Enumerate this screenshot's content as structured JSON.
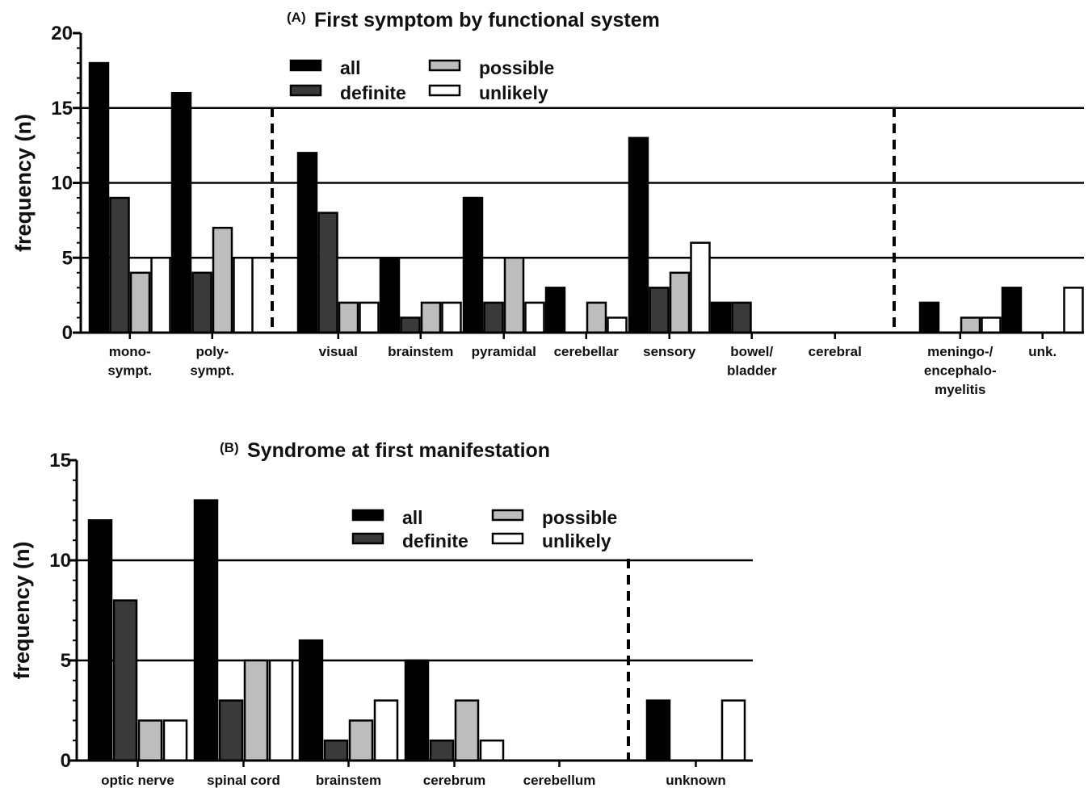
{
  "colors": {
    "all": "#000000",
    "definite": "#3a3a3a",
    "possible": "#bdbdbd",
    "unlikely": "#ffffff"
  },
  "chart_data": [
    {
      "type": "bar",
      "panel_label": "(A)",
      "title": "First symptom by functional system",
      "ylabel": "frequency (n)",
      "ylim": [
        0,
        20
      ],
      "yticks": [
        "0",
        "5",
        "10",
        "15",
        "20"
      ],
      "gridlines": [
        5,
        10,
        15
      ],
      "legend_position": "top-center",
      "categories": [
        [
          "mono-",
          "sympt."
        ],
        [
          "poly-",
          "sympt."
        ],
        [
          "visual"
        ],
        [
          "brainstem"
        ],
        [
          "pyramidal"
        ],
        [
          "cerebellar"
        ],
        [
          "sensory"
        ],
        [
          "bowel/",
          "bladder"
        ],
        [
          "cerebral"
        ],
        [
          "meningo-/",
          "encephalo-",
          "myelitis"
        ],
        [
          "unk."
        ]
      ],
      "series": [
        {
          "name": "all",
          "values": [
            18,
            16,
            12,
            5,
            9,
            3,
            13,
            2,
            0,
            2,
            3
          ]
        },
        {
          "name": "definite",
          "values": [
            9,
            4,
            8,
            1,
            2,
            0,
            3,
            2,
            0,
            0,
            0
          ]
        },
        {
          "name": "possible",
          "values": [
            4,
            7,
            2,
            2,
            5,
            2,
            4,
            0,
            0,
            1,
            0
          ]
        },
        {
          "name": "unlikely",
          "values": [
            5,
            5,
            2,
            2,
            2,
            1,
            6,
            0,
            0,
            1,
            3
          ]
        }
      ],
      "group_separators_after": [
        "poly-sympt.",
        "cerebral"
      ]
    },
    {
      "type": "bar",
      "panel_label": "(B)",
      "title": "Syndrome at first manifestation",
      "ylabel": "frequency (n)",
      "ylim": [
        0,
        15
      ],
      "yticks": [
        "0",
        "5",
        "10",
        "15"
      ],
      "gridlines": [
        5,
        10
      ],
      "legend_position": "top-center",
      "categories": [
        [
          "optic nerve"
        ],
        [
          "spinal cord"
        ],
        [
          "brainstem"
        ],
        [
          "cerebrum"
        ],
        [
          "cerebellum"
        ],
        [
          "unknown"
        ]
      ],
      "series": [
        {
          "name": "all",
          "values": [
            12,
            13,
            6,
            5,
            0,
            3
          ]
        },
        {
          "name": "definite",
          "values": [
            8,
            3,
            1,
            1,
            0,
            0
          ]
        },
        {
          "name": "possible",
          "values": [
            2,
            5,
            2,
            3,
            0,
            0
          ]
        },
        {
          "name": "unlikely",
          "values": [
            2,
            5,
            3,
            1,
            0,
            3
          ]
        }
      ],
      "group_separators_after": [
        "cerebellum"
      ]
    }
  ]
}
